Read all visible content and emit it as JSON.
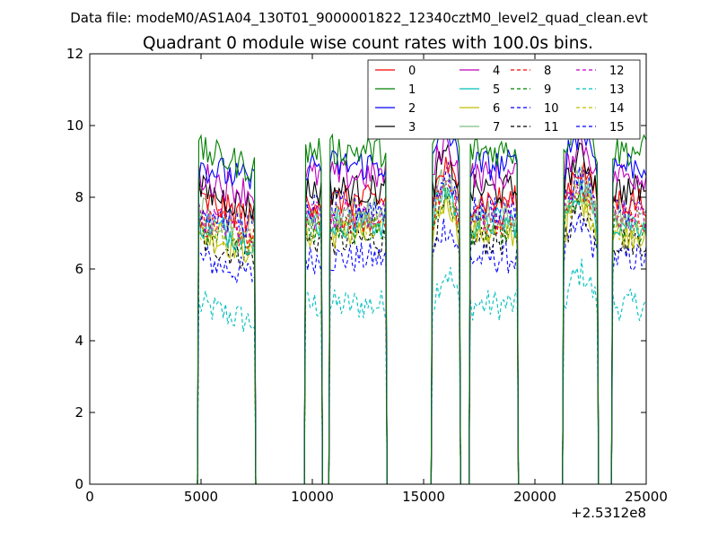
{
  "chart_data": {
    "type": "line",
    "suptitle": "Data file: modeM0/AS1A04_130T01_9000001822_12340cztM0_level2_quad_clean.evt",
    "title": "Quadrant 0 module wise count rates with 100.0s bins.",
    "xlabel": "",
    "ylabel": "",
    "x_offset_label": "+2.5312e8",
    "xlim": [
      0,
      25000
    ],
    "ylim": [
      0,
      12
    ],
    "xticks": [
      0,
      5000,
      10000,
      15000,
      20000,
      25000
    ],
    "yticks": [
      0,
      2,
      4,
      6,
      8,
      10,
      12
    ],
    "grid": false,
    "legend": {
      "location": "upper right",
      "columns": 4
    },
    "observation_segments": [
      {
        "x_start": 4900,
        "x_end": 7400
      },
      {
        "x_start": 9700,
        "x_end": 10400
      },
      {
        "x_start": 10800,
        "x_end": 13300
      },
      {
        "x_start": 15400,
        "x_end": 16600
      },
      {
        "x_start": 17100,
        "x_end": 19200
      },
      {
        "x_start": 21300,
        "x_end": 22800
      },
      {
        "x_start": 23500,
        "x_end": 25000
      }
    ],
    "series": [
      {
        "name": "0",
        "color": "#ff0000",
        "style": "solid",
        "level": 7.9
      },
      {
        "name": "1",
        "color": "#008000",
        "style": "solid",
        "level": 9.3
      },
      {
        "name": "2",
        "color": "#0000ff",
        "style": "solid",
        "level": 8.9
      },
      {
        "name": "3",
        "color": "#000000",
        "style": "solid",
        "level": 8.2
      },
      {
        "name": "4",
        "color": "#bf00bf",
        "style": "solid",
        "level": 8.6
      },
      {
        "name": "5",
        "color": "#00bfbf",
        "style": "solid",
        "level": 7.3
      },
      {
        "name": "6",
        "color": "#bfbf00",
        "style": "solid",
        "level": 7.0
      },
      {
        "name": "7",
        "color": "#7fbf7f",
        "style": "solid",
        "level": 7.6
      },
      {
        "name": "8",
        "color": "#ff0000",
        "style": "dashed",
        "level": 7.4
      },
      {
        "name": "9",
        "color": "#008000",
        "style": "dashed",
        "level": 7.1
      },
      {
        "name": "10",
        "color": "#0000ff",
        "style": "dashed",
        "level": 6.3
      },
      {
        "name": "11",
        "color": "#000000",
        "style": "dashed",
        "level": 6.8
      },
      {
        "name": "12",
        "color": "#bf00bf",
        "style": "dashed",
        "level": 7.5
      },
      {
        "name": "13",
        "color": "#00bfbf",
        "style": "dashed",
        "level": 5.0
      },
      {
        "name": "14",
        "color": "#bfbf00",
        "style": "dashed",
        "level": 7.2
      },
      {
        "name": "15",
        "color": "#0000ff",
        "style": "dashed",
        "level": 7.7
      }
    ]
  }
}
